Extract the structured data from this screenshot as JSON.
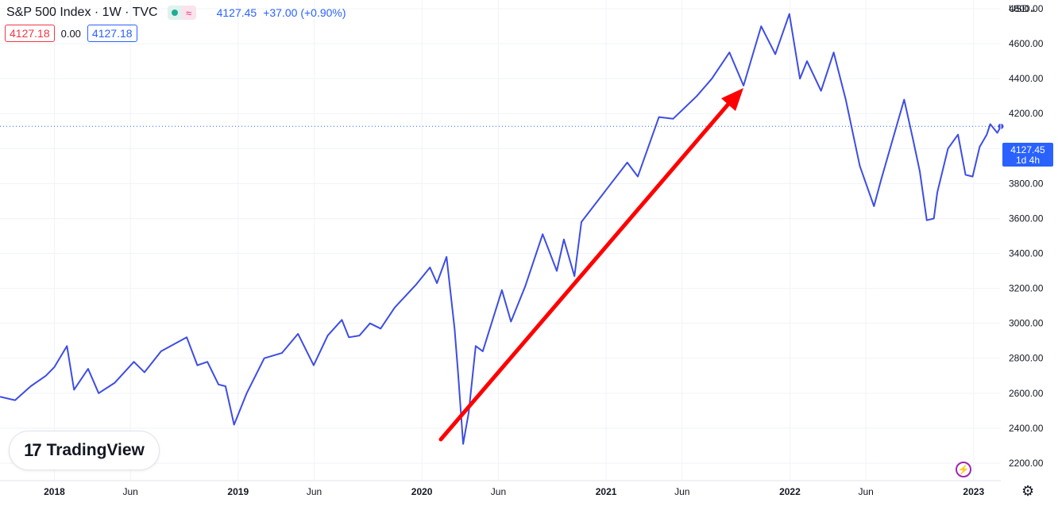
{
  "legend": {
    "title": "S&P 500 Index · 1W · TVC",
    "price": "4127.45",
    "change": "+37.00 (+0.90%)",
    "box1": "4127.18",
    "mid": "0.00",
    "box2": "4127.18"
  },
  "currency": "USD",
  "currency_icon": "chevron-down-icon",
  "price_tag": {
    "value": "4127.45",
    "countdown": "1d 4h"
  },
  "logo_text": "TradingView",
  "colors": {
    "line": "#3d4de5",
    "arrow": "#ff0000",
    "price_tag_bg": "#2962ff",
    "grid": "#f0f3fa"
  },
  "chart_data": {
    "type": "line",
    "title": "",
    "xlabel": "",
    "ylabel": "",
    "ylim": [
      2100,
      4850
    ],
    "xlim": [
      "2017-09-15",
      "2023-02-24"
    ],
    "y_ticks": [
      2200,
      2400,
      2600,
      2800,
      3000,
      3200,
      3400,
      3600,
      3800,
      4000,
      4200,
      4400,
      4600,
      4800
    ],
    "y_tick_labels": [
      "2200.00",
      "2400.00",
      "2600.00",
      "2800.00",
      "3000.00",
      "3200.00",
      "3400.00",
      "3600.00",
      "3800.00",
      "4000.00",
      "4200.00",
      "4400.00",
      "4600.00",
      "4800.00"
    ],
    "x_ticks": [
      {
        "date": "2018-01-01",
        "label": "2018",
        "bold": true
      },
      {
        "date": "2018-06-01",
        "label": "Jun",
        "bold": false
      },
      {
        "date": "2019-01-01",
        "label": "2019",
        "bold": true
      },
      {
        "date": "2019-06-01",
        "label": "Jun",
        "bold": false
      },
      {
        "date": "2020-01-01",
        "label": "2020",
        "bold": true
      },
      {
        "date": "2020-06-01",
        "label": "Jun",
        "bold": false
      },
      {
        "date": "2021-01-01",
        "label": "2021",
        "bold": true
      },
      {
        "date": "2021-06-01",
        "label": "Jun",
        "bold": false
      },
      {
        "date": "2022-01-01",
        "label": "2022",
        "bold": true
      },
      {
        "date": "2022-06-01",
        "label": "Jun",
        "bold": false
      },
      {
        "date": "2023-01-01",
        "label": "2023",
        "bold": true
      }
    ],
    "last_value": 4127.45,
    "grid": true,
    "series": [
      {
        "x": [
          "2017-09-15",
          "2017-10-15",
          "2017-11-15",
          "2017-12-15",
          "2018-01-01",
          "2018-01-26",
          "2018-02-09",
          "2018-03-09",
          "2018-03-30",
          "2018-05-01",
          "2018-06-08",
          "2018-06-29",
          "2018-08-01",
          "2018-09-21",
          "2018-10-12",
          "2018-11-01",
          "2018-11-23",
          "2018-12-07",
          "2018-12-24",
          "2019-01-18",
          "2019-02-22",
          "2019-03-29",
          "2019-04-30",
          "2019-05-31",
          "2019-06-28",
          "2019-07-26",
          "2019-08-09",
          "2019-08-30",
          "2019-09-20",
          "2019-10-11",
          "2019-11-08",
          "2019-12-20",
          "2020-01-17",
          "2020-01-31",
          "2020-02-19",
          "2020-03-06",
          "2020-03-13",
          "2020-03-23",
          "2020-04-03",
          "2020-04-17",
          "2020-05-01",
          "2020-06-08",
          "2020-06-26",
          "2020-07-24",
          "2020-08-28",
          "2020-09-25",
          "2020-10-09",
          "2020-10-30",
          "2020-11-13",
          "2020-12-31",
          "2021-02-12",
          "2021-03-05",
          "2021-04-16",
          "2021-05-14",
          "2021-06-30",
          "2021-07-30",
          "2021-09-03",
          "2021-10-01",
          "2021-11-05",
          "2021-12-03",
          "2021-12-31",
          "2022-01-21",
          "2022-02-04",
          "2022-03-04",
          "2022-03-29",
          "2022-04-22",
          "2022-05-20",
          "2022-06-17",
          "2022-07-01",
          "2022-08-16",
          "2022-09-02",
          "2022-09-16",
          "2022-09-30",
          "2022-10-14",
          "2022-10-21",
          "2022-11-11",
          "2022-12-01",
          "2022-12-16",
          "2022-12-30",
          "2023-01-13",
          "2023-01-27",
          "2023-02-03",
          "2023-02-17",
          "2023-02-24"
        ],
        "values": [
          2580,
          2560,
          2640,
          2700,
          2750,
          2870,
          2620,
          2740,
          2600,
          2660,
          2780,
          2720,
          2840,
          2920,
          2760,
          2780,
          2650,
          2640,
          2420,
          2600,
          2800,
          2830,
          2940,
          2760,
          2930,
          3020,
          2920,
          2930,
          3000,
          2970,
          3090,
          3220,
          3320,
          3230,
          3380,
          2970,
          2710,
          2310,
          2490,
          2870,
          2840,
          3190,
          3010,
          3210,
          3510,
          3300,
          3480,
          3270,
          3580,
          3760,
          3920,
          3840,
          4180,
          4170,
          4300,
          4400,
          4550,
          4360,
          4700,
          4540,
          4770,
          4400,
          4500,
          4330,
          4550,
          4280,
          3900,
          3670,
          3820,
          4280,
          4060,
          3870,
          3590,
          3600,
          3750,
          4000,
          4080,
          3850,
          3840,
          4010,
          4080,
          4140,
          4090,
          4127
        ]
      }
    ]
  }
}
